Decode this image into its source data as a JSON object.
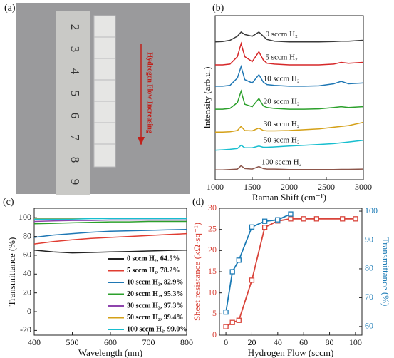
{
  "photo": {
    "label": "(a)",
    "annotation": "Hydrogen Flow Increasing",
    "ruler_marks": [
      "2",
      "3",
      "4",
      "5",
      "6",
      "7",
      "8",
      "9"
    ]
  },
  "chart_data": [
    {
      "type": "line",
      "label": "(b)",
      "xlabel": "Raman Shift (cm⁻¹)",
      "ylabel": "Intensity (arb.u.)",
      "xlim": [
        1000,
        3000
      ],
      "xticks": [
        1000,
        1500,
        2000,
        2500,
        3000
      ],
      "ylim": [
        0,
        10
      ],
      "inline_names": true,
      "x": [
        1000,
        1100,
        1200,
        1300,
        1350,
        1400,
        1500,
        1590,
        1650,
        1700,
        1800,
        2000,
        2200,
        2400,
        2600,
        2700,
        2800,
        3000
      ],
      "series": [
        {
          "name": "0 sccm H₂",
          "color": "#3a3a3a",
          "values": [
            8.4,
            8.42,
            8.5,
            8.75,
            9.0,
            8.85,
            8.75,
            9.0,
            8.75,
            8.55,
            8.45,
            8.4,
            8.4,
            8.4,
            8.42,
            8.45,
            8.45,
            8.5
          ]
        },
        {
          "name": "5 sccm H₂",
          "color": "#d62728",
          "values": [
            7.0,
            7.0,
            7.05,
            7.5,
            8.3,
            7.5,
            7.2,
            7.8,
            7.3,
            7.1,
            7.05,
            7.0,
            7.0,
            7.0,
            7.05,
            7.15,
            7.1,
            7.15
          ]
        },
        {
          "name": "10 sccm H₂",
          "color": "#1f77b4",
          "values": [
            5.7,
            5.7,
            5.75,
            6.2,
            6.9,
            6.1,
            5.9,
            6.4,
            5.95,
            5.8,
            5.75,
            5.7,
            5.7,
            5.72,
            5.85,
            6.0,
            5.85,
            5.9
          ]
        },
        {
          "name": "20 sccm H₂",
          "color": "#2ca02c",
          "values": [
            4.3,
            4.3,
            4.35,
            4.7,
            5.4,
            4.6,
            4.45,
            4.95,
            4.5,
            4.4,
            4.35,
            4.3,
            4.3,
            4.32,
            4.4,
            4.45,
            4.4,
            4.45
          ]
        },
        {
          "name": "30 sccm H₂",
          "color": "#d4a017",
          "values": [
            2.9,
            2.9,
            2.92,
            3.0,
            3.25,
            3.0,
            2.98,
            3.15,
            3.0,
            2.98,
            2.98,
            3.0,
            3.05,
            3.1,
            3.2,
            3.25,
            3.3,
            3.5
          ]
        },
        {
          "name": "50 sccm H₂",
          "color": "#17becf",
          "values": [
            1.8,
            1.82,
            1.85,
            1.9,
            2.1,
            1.95,
            1.95,
            2.05,
            1.98,
            1.98,
            2.0,
            2.05,
            2.1,
            2.15,
            2.2,
            2.25,
            2.3,
            2.4
          ]
        },
        {
          "name": "100 sccm H₂",
          "color": "#8c564b",
          "values": [
            0.6,
            0.6,
            0.62,
            0.65,
            0.85,
            0.68,
            0.65,
            0.8,
            0.68,
            0.65,
            0.65,
            0.62,
            0.62,
            0.62,
            0.62,
            0.63,
            0.63,
            0.65
          ]
        }
      ]
    },
    {
      "type": "line",
      "label": "(c)",
      "xlabel": "Wavelength (nm)",
      "ylabel": "Transmittance (%)",
      "xlim": [
        400,
        800
      ],
      "xticks": [
        400,
        500,
        600,
        700,
        800
      ],
      "ylim": [
        -25,
        110
      ],
      "yticks": [
        -20,
        0,
        20,
        40,
        60,
        80,
        100
      ],
      "legend": "lower right",
      "x": [
        400,
        450,
        500,
        550,
        600,
        650,
        700,
        750,
        800
      ],
      "series": [
        {
          "name": "0 sccm H₂, 64.5%",
          "color": "#222222",
          "values": [
            65.5,
            63.5,
            62.5,
            63,
            63.5,
            64,
            64.5,
            65,
            65.5
          ]
        },
        {
          "name": "5 sccm H₂, 78.2%",
          "color": "#e03c31",
          "values": [
            72,
            74.5,
            76.5,
            78,
            79,
            80,
            81,
            82,
            83
          ]
        },
        {
          "name": "10 sccm H₂, 82.9%",
          "color": "#1f77b4",
          "values": [
            79,
            81.5,
            83,
            84.5,
            85.5,
            86,
            86.5,
            87,
            87.5
          ]
        },
        {
          "name": "20 sccm H₂, 95.3%",
          "color": "#2ca02c",
          "values": [
            93.5,
            94,
            94.5,
            95,
            95.5,
            95.5,
            96,
            96,
            96
          ]
        },
        {
          "name": "30 sccm H₂, 97.3%",
          "color": "#8e44ad",
          "values": [
            96,
            96.5,
            97,
            97,
            97.5,
            97.5,
            97.5,
            97.5,
            97.5
          ]
        },
        {
          "name": "50 sccm H₂, 99.4%",
          "color": "#d4a017",
          "values": [
            99,
            99,
            99.5,
            99.5,
            99.5,
            99.5,
            99.5,
            99.5,
            99.5
          ]
        },
        {
          "name": "100 sccm H₂, 99.0%",
          "color": "#17becf",
          "values": [
            98.5,
            98.5,
            98.5,
            99,
            99,
            99,
            99,
            99,
            99
          ]
        }
      ]
    },
    {
      "type": "line",
      "label": "(d)",
      "xlabel": "Hydrogen Flow (sccm)",
      "ylabel": "Sheet resistance (kΩ·sq⁻¹)",
      "y2label": "Transmittance (%)",
      "markers": true,
      "xlim": [
        -5,
        105
      ],
      "xticks": [
        0,
        20,
        40,
        60,
        80,
        100
      ],
      "ylim": [
        0,
        30
      ],
      "yticks": [
        0,
        5,
        10,
        15,
        20,
        25,
        30
      ],
      "y2lim": [
        57,
        101
      ],
      "y2ticks": [
        60,
        70,
        80,
        90,
        100
      ],
      "x": [
        0,
        5,
        10,
        20,
        30,
        40,
        50,
        60,
        70,
        90,
        100
      ],
      "series": [
        {
          "color": "#d9443a",
          "values": [
            2,
            3,
            3.5,
            13,
            25.5,
            27,
            27.5,
            27.5,
            27.5,
            27.5,
            27.5
          ]
        },
        {
          "color": "#1a7ab5",
          "axis": "y2",
          "values": [
            65,
            79,
            83,
            94.5,
            96.5,
            97,
            99,
            null,
            null,
            null,
            null
          ]
        }
      ]
    }
  ]
}
